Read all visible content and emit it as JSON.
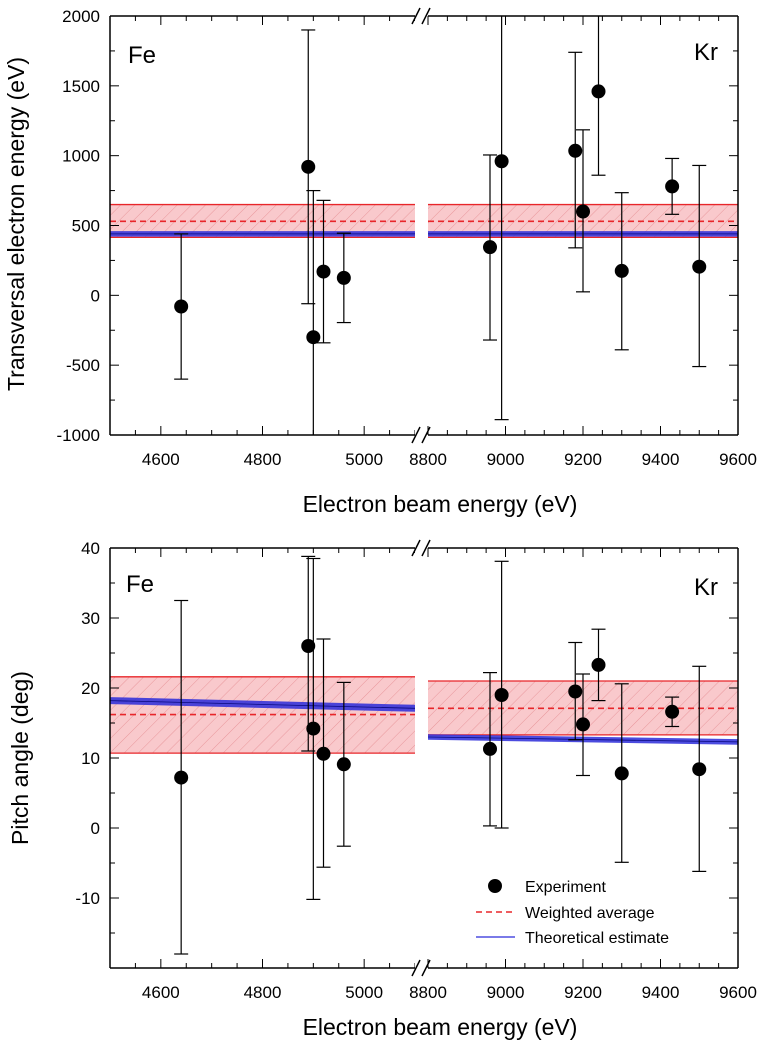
{
  "chart_data": [
    {
      "type": "scatter",
      "xlabel": "Electron beam energy (eV)",
      "ylabel": "Transversal electron energy (eV)",
      "ylim": [
        -1000,
        2000
      ],
      "yticks": [
        "2000",
        "1500",
        "1000",
        "500",
        "0",
        "-500",
        "-1000"
      ],
      "x_break": true,
      "panels": [
        {
          "label": "Fe",
          "xlim": [
            4500,
            5100
          ],
          "xticks": [
            "4600",
            "4800",
            "5000"
          ],
          "points": [
            {
              "x": 4640,
              "y": -80,
              "lo": -600,
              "hi": 440
            },
            {
              "x": 4890,
              "y": 920,
              "lo": -60,
              "hi": 1900
            },
            {
              "x": 4900,
              "y": -300,
              "lo": -1000,
              "hi": 750
            },
            {
              "x": 4920,
              "y": 170,
              "lo": -340,
              "hi": 680
            },
            {
              "x": 4960,
              "y": 125,
              "lo": -195,
              "hi": 445
            }
          ],
          "weighted_avg": {
            "value": 530,
            "lo": 415,
            "hi": 650
          },
          "theory": {
            "start": 440,
            "end": 440,
            "halfwidth": 20
          }
        },
        {
          "label": "Kr",
          "xlim": [
            8800,
            9600
          ],
          "xticks": [
            "8800",
            "9000",
            "9200",
            "9400",
            "9600"
          ],
          "points": [
            {
              "x": 8960,
              "y": 345,
              "lo": -320,
              "hi": 1005
            },
            {
              "x": 8990,
              "y": 960,
              "lo": -890,
              "hi": 2000
            },
            {
              "x": 9180,
              "y": 1035,
              "lo": 340,
              "hi": 1740
            },
            {
              "x": 9200,
              "y": 600,
              "lo": 25,
              "hi": 1185
            },
            {
              "x": 9240,
              "y": 1460,
              "lo": 860,
              "hi": 2000
            },
            {
              "x": 9300,
              "y": 175,
              "lo": -390,
              "hi": 735
            },
            {
              "x": 9430,
              "y": 780,
              "lo": 580,
              "hi": 980
            },
            {
              "x": 9500,
              "y": 205,
              "lo": -510,
              "hi": 930
            }
          ],
          "weighted_avg": {
            "value": 530,
            "lo": 415,
            "hi": 650
          },
          "theory": {
            "start": 440,
            "end": 440,
            "halfwidth": 20
          }
        }
      ]
    },
    {
      "type": "scatter",
      "xlabel": "Electron beam energy (eV)",
      "ylabel": "Pitch angle (deg)",
      "ylim": [
        -20,
        40
      ],
      "yticks": [
        "40",
        "30",
        "20",
        "10",
        "0",
        "-10"
      ],
      "x_break": true,
      "panels": [
        {
          "label": "Fe",
          "xlim": [
            4500,
            5100
          ],
          "xticks": [
            "4600",
            "4800",
            "5000"
          ],
          "points": [
            {
              "x": 4640,
              "y": 7.2,
              "lo": -18,
              "hi": 32.5
            },
            {
              "x": 4890,
              "y": 26,
              "lo": 11,
              "hi": 38.8
            },
            {
              "x": 4900,
              "y": 14.2,
              "lo": -10.2,
              "hi": 38.5
            },
            {
              "x": 4920,
              "y": 10.6,
              "lo": -5.6,
              "hi": 27
            },
            {
              "x": 4960,
              "y": 9.1,
              "lo": -2.6,
              "hi": 20.8
            }
          ],
          "weighted_avg": {
            "value": 16.2,
            "lo": 10.7,
            "hi": 21.6
          },
          "theory": {
            "start": 18.2,
            "end": 17.1,
            "halfwidth": 0.5
          }
        },
        {
          "label": "Kr",
          "xlim": [
            8800,
            9600
          ],
          "xticks": [
            "8800",
            "9000",
            "9200",
            "9400",
            "9600"
          ],
          "points": [
            {
              "x": 8960,
              "y": 11.3,
              "lo": 0.3,
              "hi": 22.2
            },
            {
              "x": 8990,
              "y": 19,
              "lo": 0,
              "hi": 38.1
            },
            {
              "x": 9180,
              "y": 19.5,
              "lo": 12.6,
              "hi": 26.5
            },
            {
              "x": 9200,
              "y": 14.8,
              "lo": 7.5,
              "hi": 22
            },
            {
              "x": 9240,
              "y": 23.3,
              "lo": 18.2,
              "hi": 28.4
            },
            {
              "x": 9300,
              "y": 7.8,
              "lo": -4.9,
              "hi": 20.6
            },
            {
              "x": 9430,
              "y": 16.6,
              "lo": 14.5,
              "hi": 18.7
            },
            {
              "x": 9500,
              "y": 8.4,
              "lo": -6.2,
              "hi": 23.1
            }
          ],
          "weighted_avg": {
            "value": 17.1,
            "lo": 13.3,
            "hi": 21
          },
          "theory": {
            "start": 13,
            "end": 12.3,
            "halfwidth": 0.4
          }
        }
      ],
      "legend": {
        "position": "bottom-right",
        "entries": [
          "Experiment",
          "Weighted average",
          "Theoretical estimate"
        ]
      }
    }
  ],
  "colors": {
    "experiment": "#000000",
    "weighted_average": "#e8262a",
    "band_fill": "#f9c9cc",
    "theory": "#2b2bd9"
  }
}
